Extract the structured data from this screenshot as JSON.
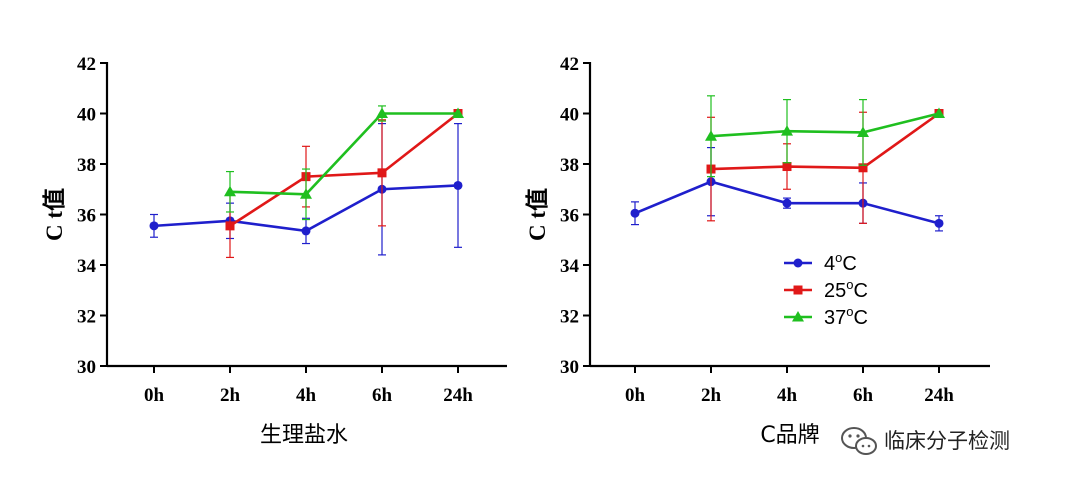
{
  "chart_data": [
    {
      "type": "line",
      "xlabel": "生理盐水",
      "ylabel": "C t值",
      "categories": [
        "0h",
        "2h",
        "4h",
        "6h",
        "24h"
      ],
      "ylim": [
        30,
        42
      ],
      "yticks": [
        "30",
        "32",
        "34",
        "36",
        "38",
        "40",
        "42"
      ],
      "series": [
        {
          "name": "4℃",
          "color": "#1f1fcc",
          "marker": "circle",
          "values": [
            35.55,
            35.75,
            35.35,
            37.0,
            37.15
          ],
          "err": [
            0.45,
            0.7,
            0.5,
            2.6,
            2.45
          ]
        },
        {
          "name": "25℃",
          "color": "#e01818",
          "marker": "square",
          "values": [
            null,
            35.55,
            37.5,
            37.65,
            40.0
          ],
          "err": [
            null,
            1.25,
            1.2,
            2.1,
            0
          ]
        },
        {
          "name": "37℃",
          "color": "#1fbf1f",
          "marker": "triangle",
          "values": [
            null,
            36.9,
            36.8,
            40.0,
            40.0
          ],
          "err": [
            null,
            0.8,
            1.0,
            0.3,
            0
          ]
        }
      ]
    },
    {
      "type": "line",
      "xlabel": "C品牌",
      "ylabel": "C t值",
      "categories": [
        "0h",
        "2h",
        "4h",
        "6h",
        "24h"
      ],
      "ylim": [
        30,
        42
      ],
      "yticks": [
        "30",
        "32",
        "34",
        "36",
        "38",
        "40",
        "42"
      ],
      "legend": [
        {
          "label": "4",
          "sup": "o",
          "unit": "C"
        },
        {
          "label": "25",
          "sup": "o",
          "unit": "C"
        },
        {
          "label": "37",
          "sup": "o",
          "unit": "C"
        }
      ],
      "series": [
        {
          "name": "4℃",
          "color": "#1f1fcc",
          "marker": "circle",
          "values": [
            36.05,
            37.3,
            36.45,
            36.45,
            35.65
          ],
          "err": [
            0.45,
            1.35,
            0.2,
            0.8,
            0.3
          ]
        },
        {
          "name": "25℃",
          "color": "#e01818",
          "marker": "square",
          "values": [
            null,
            37.8,
            37.9,
            37.85,
            40.0
          ],
          "err": [
            null,
            2.05,
            0.9,
            2.2,
            0
          ]
        },
        {
          "name": "37℃",
          "color": "#1fbf1f",
          "marker": "triangle",
          "values": [
            null,
            39.1,
            39.3,
            39.25,
            40.0
          ],
          "err": [
            null,
            1.6,
            1.25,
            1.3,
            0
          ]
        }
      ]
    }
  ],
  "watermark": {
    "text": "临床分子检测",
    "icon": "wechat-icon"
  }
}
